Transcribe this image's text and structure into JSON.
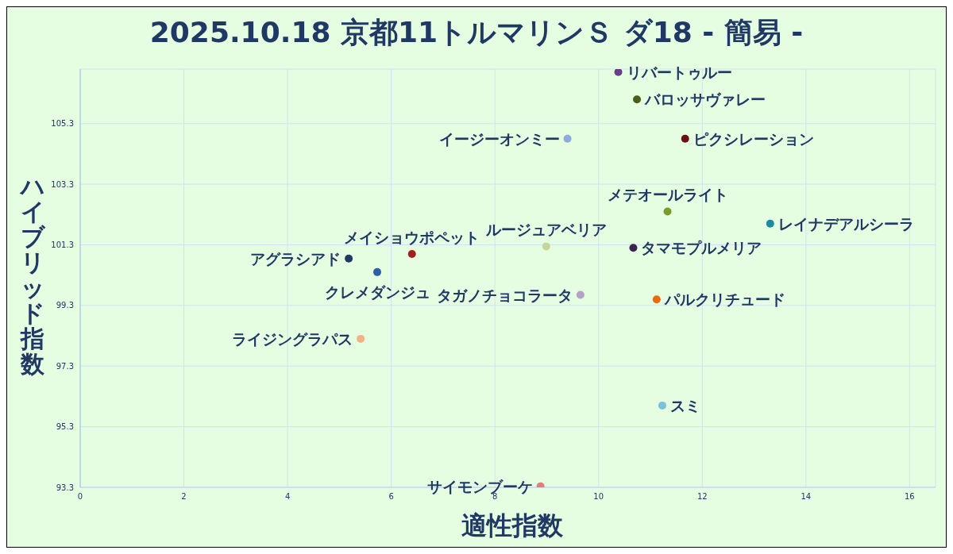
{
  "chart_data": {
    "type": "scatter",
    "title": "2025.10.18 京都11トルマリンＳ ダ18 - 簡易 -",
    "xlabel": "適性指数",
    "ylabel": "ハイブリッド指数",
    "xlim": [
      0,
      16.5
    ],
    "xticks": [
      0,
      2,
      4,
      6,
      8,
      10,
      12,
      14,
      16
    ],
    "ylim": [
      93.3,
      107.1
    ],
    "yticks": [
      93.3,
      95.3,
      97.3,
      99.3,
      101.3,
      103.3,
      105.3
    ],
    "grid": true,
    "marker": "circle",
    "legend": false,
    "series": [
      {
        "name": "リバートゥルー",
        "color": "#6a3d8a",
        "x": [
          10.38
        ],
        "values": [
          107.0
        ]
      },
      {
        "name": "バロッサヴァレー",
        "color": "#4a5e1a",
        "x": [
          10.74
        ],
        "values": [
          106.1
        ]
      },
      {
        "name": "ピクシレーション",
        "color": "#6b1010",
        "x": [
          11.67
        ],
        "values": [
          104.8
        ]
      },
      {
        "name": "イージーオンミー",
        "color": "#8faadc",
        "x": [
          9.4
        ],
        "values": [
          104.8
        ]
      },
      {
        "name": "メテオールライト",
        "color": "#7a9a2a",
        "x": [
          11.33
        ],
        "values": [
          102.4
        ]
      },
      {
        "name": "レイナデアルシーラ",
        "color": "#1a8ca0",
        "x": [
          13.31
        ],
        "values": [
          102.0
        ]
      },
      {
        "name": "ルージュアベリア",
        "color": "#c4d79b",
        "x": [
          8.99
        ],
        "values": [
          101.25
        ]
      },
      {
        "name": "タマモプルメリア",
        "color": "#3a2450",
        "x": [
          10.67
        ],
        "values": [
          101.2
        ]
      },
      {
        "name": "メイショウポペット",
        "color": "#a02020",
        "x": [
          6.4
        ],
        "values": [
          101.0
        ]
      },
      {
        "name": "アグラシアド",
        "color": "#1f3864",
        "x": [
          5.18
        ],
        "values": [
          100.85
        ]
      },
      {
        "name": "クレメダンジュ",
        "color": "#2e5ea8",
        "x": [
          5.73
        ],
        "values": [
          100.4
        ]
      },
      {
        "name": "タガノチョコラータ",
        "color": "#b4a0c8",
        "x": [
          9.65
        ],
        "values": [
          99.65
        ]
      },
      {
        "name": "パルクリチュード",
        "color": "#e86a10",
        "x": [
          11.12
        ],
        "values": [
          99.5
        ]
      },
      {
        "name": "ライジングラパス",
        "color": "#f4b183",
        "x": [
          5.41
        ],
        "values": [
          98.2
        ]
      },
      {
        "name": "スミ",
        "color": "#7ec0dc",
        "x": [
          11.23
        ],
        "values": [
          96.0
        ]
      },
      {
        "name": "サイモンブーケ",
        "color": "#d98080",
        "x": [
          8.88
        ],
        "values": [
          93.33
        ]
      }
    ]
  }
}
